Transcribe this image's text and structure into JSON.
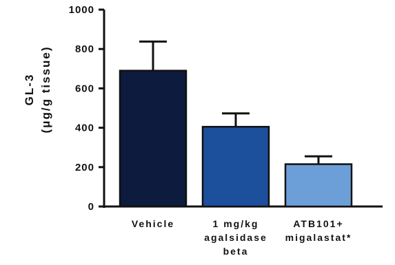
{
  "chart_data": {
    "type": "bar",
    "categories": [
      [
        "Vehicle"
      ],
      [
        "1 mg/kg",
        "agalsidase",
        "beta"
      ],
      [
        "ATB101+",
        "migalastat*"
      ]
    ],
    "values": [
      690,
      405,
      215
    ],
    "errors": [
      148,
      68,
      40
    ],
    "colors": [
      "#0d1b3e",
      "#1c4f9c",
      "#6c9fd8"
    ],
    "ylabel_lines": [
      "GL-3",
      "(μg/g tissue)"
    ],
    "ylim": [
      0,
      1000
    ],
    "yticks": [
      0,
      200,
      400,
      600,
      800,
      1000
    ],
    "grid": false,
    "legend": "none"
  }
}
